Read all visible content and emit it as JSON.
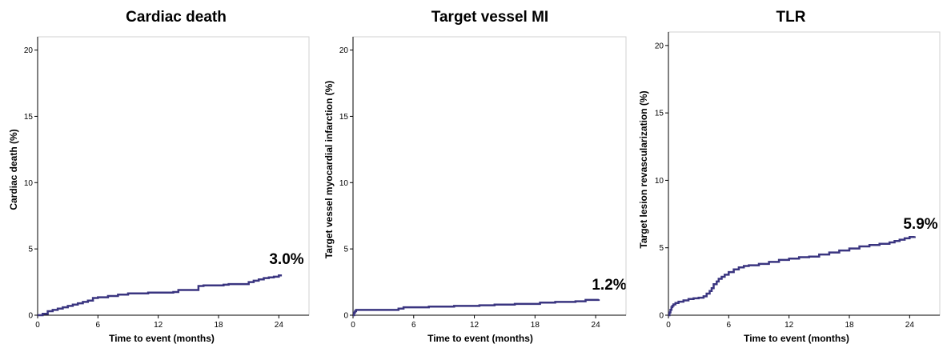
{
  "chart_data": [
    {
      "type": "line",
      "title": "Cardiac death",
      "xlabel": "Time to event (months)",
      "ylabel": "Cardiac death (%)",
      "xlim": [
        0,
        27
      ],
      "ylim": [
        0,
        21
      ],
      "xticks": [
        "0",
        "6",
        "12",
        "18",
        "24"
      ],
      "yticks": [
        "0",
        "5",
        "10",
        "15",
        "20"
      ],
      "annotation": {
        "text": "3.0%",
        "x": 24.3,
        "y": 3.0
      },
      "line_color": "#3a3580",
      "series": [
        {
          "x": [
            0,
            0.5,
            1,
            1.5,
            2,
            2.5,
            3,
            3.5,
            4,
            4.5,
            5,
            5.5,
            6,
            7,
            8,
            9,
            11,
            13.5,
            14,
            16,
            16.5,
            18.5,
            19,
            21,
            21.5,
            22,
            22.5,
            23,
            23.5,
            24,
            24.3
          ],
          "y": [
            0,
            0.1,
            0.3,
            0.4,
            0.5,
            0.6,
            0.7,
            0.8,
            0.9,
            1.0,
            1.1,
            1.3,
            1.35,
            1.45,
            1.55,
            1.65,
            1.7,
            1.75,
            1.9,
            2.2,
            2.25,
            2.3,
            2.35,
            2.5,
            2.6,
            2.7,
            2.8,
            2.85,
            2.9,
            3.0,
            3.0
          ]
        }
      ]
    },
    {
      "type": "line",
      "title": "Target vessel MI",
      "xlabel": "Time to event (months)",
      "ylabel": "Target vessel myocardial infarction (%)",
      "xlim": [
        0,
        27
      ],
      "ylim": [
        0,
        21
      ],
      "xticks": [
        "0",
        "6",
        "12",
        "18",
        "24"
      ],
      "yticks": [
        "0",
        "5",
        "10",
        "15",
        "20"
      ],
      "annotation": {
        "text": "1.2%",
        "x": 24.3,
        "y": 1.2
      },
      "line_color": "#3a3580",
      "series": [
        {
          "x": [
            0,
            0.1,
            0.2,
            0.3,
            4.5,
            5,
            7.5,
            10,
            12.5,
            14,
            16,
            18.5,
            20,
            22,
            23,
            24.3
          ],
          "y": [
            0,
            0.2,
            0.3,
            0.4,
            0.5,
            0.6,
            0.65,
            0.7,
            0.75,
            0.8,
            0.85,
            0.95,
            1.0,
            1.05,
            1.15,
            1.2
          ]
        }
      ]
    },
    {
      "type": "line",
      "title": "TLR",
      "xlabel": "Time to event (months)",
      "ylabel": "Target lesion revascularization (%)",
      "xlim": [
        0,
        27
      ],
      "ylim": [
        0,
        21
      ],
      "xticks": [
        "0",
        "6",
        "12",
        "18",
        "24"
      ],
      "yticks": [
        "0",
        "5",
        "10",
        "15",
        "20"
      ],
      "annotation": {
        "text": "5.9%",
        "x": 24.3,
        "y": 5.9
      },
      "line_color": "#3a3580",
      "series": [
        {
          "x": [
            0,
            0.1,
            0.2,
            0.3,
            0.4,
            0.5,
            0.7,
            1,
            1.5,
            2,
            2.5,
            3,
            3.5,
            3.8,
            4.1,
            4.3,
            4.5,
            4.8,
            5,
            5.3,
            5.6,
            6,
            6.5,
            7,
            7.5,
            8,
            9,
            10,
            11,
            12,
            13,
            14,
            15,
            16,
            17,
            18,
            19,
            20,
            21,
            22,
            22.5,
            23,
            23.5,
            24,
            24.5
          ],
          "y": [
            0,
            0.2,
            0.4,
            0.6,
            0.7,
            0.8,
            0.9,
            1.0,
            1.1,
            1.2,
            1.25,
            1.3,
            1.4,
            1.6,
            1.8,
            2.0,
            2.3,
            2.5,
            2.7,
            2.85,
            3.0,
            3.2,
            3.4,
            3.55,
            3.65,
            3.7,
            3.8,
            3.95,
            4.1,
            4.2,
            4.3,
            4.35,
            4.5,
            4.65,
            4.8,
            4.95,
            5.1,
            5.2,
            5.3,
            5.4,
            5.5,
            5.6,
            5.7,
            5.8,
            5.85
          ]
        }
      ]
    }
  ]
}
